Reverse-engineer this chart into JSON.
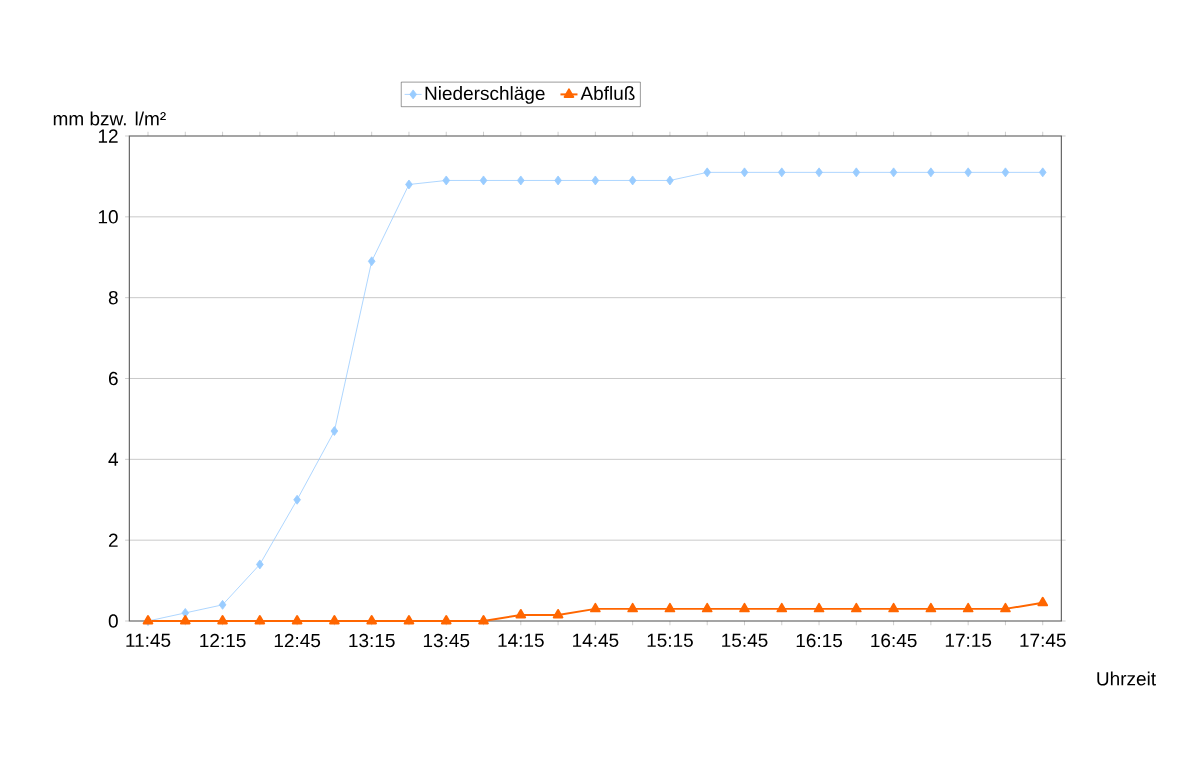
{
  "chart_data": {
    "type": "line",
    "categories": [
      "11:45",
      null,
      "12:15",
      null,
      "12:45",
      null,
      "13:15",
      null,
      "13:45",
      null,
      "14:15",
      null,
      "14:45",
      null,
      "15:15",
      null,
      "15:45",
      null,
      "16:15",
      null,
      "16:45",
      null,
      "17:15",
      null,
      "17:45"
    ],
    "series": [
      {
        "name": "Niederschläge",
        "color": "#99ccff",
        "marker": "diamond",
        "values": [
          0,
          0.2,
          0.4,
          1.4,
          3.0,
          4.7,
          8.9,
          10.8,
          10.9,
          10.9,
          10.9,
          10.9,
          10.9,
          10.9,
          10.9,
          11.1,
          11.1,
          11.1,
          11.1,
          11.1,
          11.1,
          11.1,
          11.1,
          11.1,
          11.1
        ]
      },
      {
        "name": "Abfluß",
        "color": "#ff6600",
        "marker": "triangle",
        "values": [
          0,
          0,
          0,
          0,
          0,
          0,
          0,
          0,
          0,
          0,
          0.15,
          0.15,
          0.3,
          0.3,
          0.3,
          0.3,
          0.3,
          0.3,
          0.3,
          0.3,
          0.3,
          0.3,
          0.3,
          0.3,
          0.45
        ]
      }
    ],
    "xlabel": "Uhrzeit",
    "ylabel": "mm bzw. l/m²",
    "ylim": [
      0,
      12
    ],
    "yticks": [
      0,
      2,
      4,
      6,
      8,
      10,
      12
    ],
    "grid": "y",
    "legend": "top",
    "line_style": "solid"
  }
}
